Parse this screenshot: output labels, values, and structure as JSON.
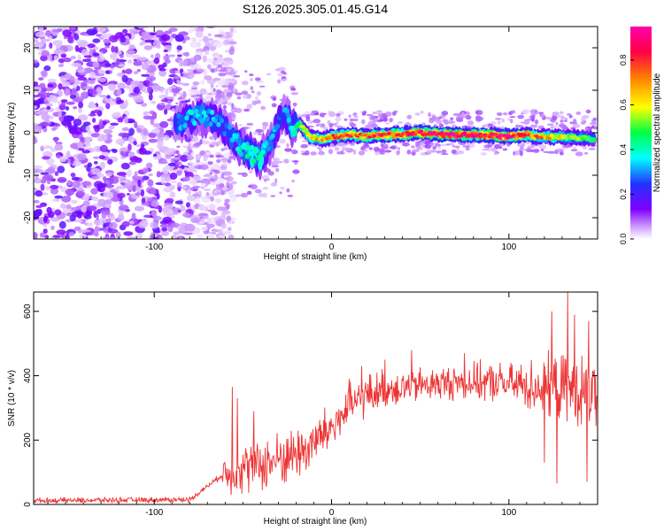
{
  "title": "S126.2025.305.01.45.G14",
  "chart_data": [
    {
      "type": "heatmap",
      "xlabel": "Height of straight line (km)",
      "ylabel": "Frequency (Hz)",
      "xlim": [
        -168,
        150
      ],
      "ylim": [
        -25,
        25
      ],
      "xticks": [
        -100,
        0,
        100
      ],
      "yticks": [
        -20,
        -10,
        0,
        10,
        20
      ],
      "colorbar": {
        "label": "Normalized spectral amplitude",
        "range": [
          0,
          0.95
        ],
        "ticks": [
          "0.0",
          "0.2",
          "0.4",
          "0.6",
          "0.8"
        ],
        "colors": [
          "#ffffff",
          "#cc99ff",
          "#7f00ff",
          "#2233ff",
          "#00ffff",
          "#00ff44",
          "#ffff00",
          "#ff8800",
          "#ff0044",
          "#ff00aa"
        ]
      },
      "noise_region_km": [
        -168,
        -80
      ],
      "dominant_ridge": [
        {
          "x": -88,
          "y": 2,
          "a": 0.3
        },
        {
          "x": -80,
          "y": 3.5,
          "a": 0.35
        },
        {
          "x": -72,
          "y": 4,
          "a": 0.38
        },
        {
          "x": -65,
          "y": 3,
          "a": 0.32
        },
        {
          "x": -58,
          "y": 0,
          "a": 0.3
        },
        {
          "x": -52,
          "y": -3,
          "a": 0.4
        },
        {
          "x": -46,
          "y": -5,
          "a": 0.45
        },
        {
          "x": -40,
          "y": -6,
          "a": 0.45
        },
        {
          "x": -35,
          "y": -3,
          "a": 0.35
        },
        {
          "x": -30,
          "y": 2,
          "a": 0.3
        },
        {
          "x": -27,
          "y": 5,
          "a": 0.3
        },
        {
          "x": -22,
          "y": 1,
          "a": 0.4
        },
        {
          "x": -18,
          "y": 2,
          "a": 0.55
        },
        {
          "x": -12,
          "y": -1,
          "a": 0.7
        },
        {
          "x": -5,
          "y": -1.5,
          "a": 0.72
        },
        {
          "x": 0,
          "y": -1,
          "a": 0.75
        },
        {
          "x": 10,
          "y": -0.5,
          "a": 0.78
        },
        {
          "x": 20,
          "y": -0.8,
          "a": 0.8
        },
        {
          "x": 30,
          "y": -0.5,
          "a": 0.82
        },
        {
          "x": 40,
          "y": -0.3,
          "a": 0.85
        },
        {
          "x": 50,
          "y": 0,
          "a": 0.9
        },
        {
          "x": 60,
          "y": -0.3,
          "a": 0.92
        },
        {
          "x": 70,
          "y": -0.5,
          "a": 0.93
        },
        {
          "x": 80,
          "y": -0.5,
          "a": 0.93
        },
        {
          "x": 90,
          "y": -0.6,
          "a": 0.92
        },
        {
          "x": 100,
          "y": -0.8,
          "a": 0.9
        },
        {
          "x": 110,
          "y": -0.5,
          "a": 0.82
        },
        {
          "x": 120,
          "y": -1,
          "a": 0.7
        },
        {
          "x": 130,
          "y": -1,
          "a": 0.62
        },
        {
          "x": 140,
          "y": -1.2,
          "a": 0.55
        },
        {
          "x": 148,
          "y": -1.5,
          "a": 0.5
        }
      ]
    },
    {
      "type": "line",
      "xlabel": "Height of straight line (km)",
      "ylabel": "SNR (10 * v/v)",
      "xlim": [
        -168,
        150
      ],
      "ylim": [
        0,
        660
      ],
      "xticks": [
        -100,
        0,
        100
      ],
      "yticks": [
        0,
        200,
        400,
        600
      ],
      "color": "#ee3333",
      "trend": [
        [
          -168,
          12
        ],
        [
          -80,
          15
        ],
        [
          -62,
          90
        ],
        [
          -55,
          110
        ],
        [
          -45,
          120
        ],
        [
          -35,
          130
        ],
        [
          -25,
          150
        ],
        [
          -15,
          170
        ],
        [
          -8,
          200
        ],
        [
          0,
          240
        ],
        [
          10,
          300
        ],
        [
          20,
          340
        ],
        [
          30,
          360
        ],
        [
          50,
          370
        ],
        [
          70,
          380
        ],
        [
          90,
          380
        ],
        [
          110,
          370
        ],
        [
          130,
          360
        ],
        [
          150,
          340
        ]
      ],
      "spread": [
        [
          -168,
          8
        ],
        [
          -62,
          8
        ],
        [
          -60,
          70
        ],
        [
          -40,
          80
        ],
        [
          -10,
          80
        ],
        [
          0,
          70
        ],
        [
          20,
          60
        ],
        [
          60,
          50
        ],
        [
          100,
          60
        ],
        [
          120,
          90
        ],
        [
          150,
          110
        ]
      ],
      "peaks": [
        {
          "x": -56,
          "y": 365
        },
        {
          "x": -53,
          "y": 330
        },
        {
          "x": -44,
          "y": 290
        },
        {
          "x": 10,
          "y": 390
        },
        {
          "x": 17,
          "y": 430
        },
        {
          "x": 30,
          "y": 450
        },
        {
          "x": 45,
          "y": 480
        },
        {
          "x": 75,
          "y": 470
        },
        {
          "x": 101,
          "y": 440
        },
        {
          "x": 124,
          "y": 600
        },
        {
          "x": 133,
          "y": 660
        },
        {
          "x": 137,
          "y": 590
        },
        {
          "x": 145,
          "y": 570
        },
        {
          "x": 120,
          "y": 130
        },
        {
          "x": 127,
          "y": 65
        },
        {
          "x": 144,
          "y": 70
        }
      ]
    }
  ]
}
